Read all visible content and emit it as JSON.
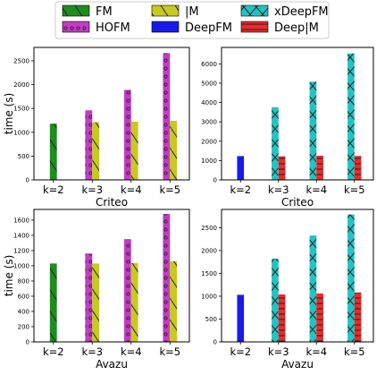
{
  "legend": {
    "items": [
      {
        "label": "FM",
        "color": "#1f8c1f",
        "pattern": "diag-back"
      },
      {
        "label": "|M",
        "color": "#c8c81e",
        "pattern": "diag-back"
      },
      {
        "label": "xDeepFM",
        "color": "#22c3c3",
        "pattern": "cross"
      },
      {
        "label": "HOFM",
        "color": "#c43cc4",
        "pattern": "dots"
      },
      {
        "label": "DeepFM",
        "color": "#1a1ae6",
        "pattern": "none"
      },
      {
        "label": "Deep|M",
        "color": "#ee2a2a",
        "pattern": "hlines"
      }
    ]
  },
  "chart_data": [
    {
      "type": "bar",
      "dataset": "Criteo",
      "xlabel": "Criteo",
      "ylabel": "time (s)",
      "categories": [
        "k=2",
        "k=3",
        "k=4",
        "k=5"
      ],
      "yticks": [
        0,
        500,
        1000,
        1500,
        2000,
        2500
      ],
      "ylim": [
        0,
        2780
      ],
      "series": [
        {
          "name": "FM",
          "values": [
            1180,
            null,
            null,
            null
          ]
        },
        {
          "name": "HOFM",
          "values": [
            null,
            1460,
            1890,
            2660
          ]
        },
        {
          "name": "|M",
          "values": [
            null,
            1210,
            1220,
            1240
          ]
        }
      ]
    },
    {
      "type": "bar",
      "dataset": "Criteo",
      "xlabel": "Criteo",
      "ylabel": "",
      "categories": [
        "k=2",
        "k=3",
        "k=4",
        "k=5"
      ],
      "yticks": [
        0,
        1000,
        2000,
        3000,
        4000,
        5000,
        6000
      ],
      "ylim": [
        0,
        6850
      ],
      "series": [
        {
          "name": "DeepFM",
          "values": [
            1230,
            null,
            null,
            null
          ]
        },
        {
          "name": "xDeepFM",
          "values": [
            null,
            3760,
            5080,
            6540
          ]
        },
        {
          "name": "Deep|M",
          "values": [
            null,
            1220,
            1250,
            1240
          ]
        }
      ]
    },
    {
      "type": "bar",
      "dataset": "Avazu",
      "xlabel": "Avazu",
      "ylabel": "time (s)",
      "categories": [
        "k=2",
        "k=3",
        "k=4",
        "k=5"
      ],
      "yticks": [
        0,
        200,
        400,
        600,
        800,
        1000,
        1200,
        1400,
        1600
      ],
      "ylim": [
        0,
        1740
      ],
      "series": [
        {
          "name": "FM",
          "values": [
            1030,
            null,
            null,
            null
          ]
        },
        {
          "name": "HOFM",
          "values": [
            null,
            1160,
            1350,
            1680
          ]
        },
        {
          "name": "|M",
          "values": [
            null,
            1030,
            1035,
            1060
          ]
        }
      ]
    },
    {
      "type": "bar",
      "dataset": "Avazu",
      "xlabel": "Avazu",
      "ylabel": "",
      "categories": [
        "k=2",
        "k=3",
        "k=4",
        "k=5"
      ],
      "yticks": [
        0,
        500,
        1000,
        1500,
        2000,
        2500
      ],
      "ylim": [
        0,
        2900
      ],
      "series": [
        {
          "name": "DeepFM",
          "values": [
            1030,
            null,
            null,
            null
          ]
        },
        {
          "name": "xDeepFM",
          "values": [
            null,
            1820,
            2330,
            2790
          ]
        },
        {
          "name": "Deep|M",
          "values": [
            null,
            1040,
            1060,
            1080
          ]
        }
      ]
    }
  ]
}
